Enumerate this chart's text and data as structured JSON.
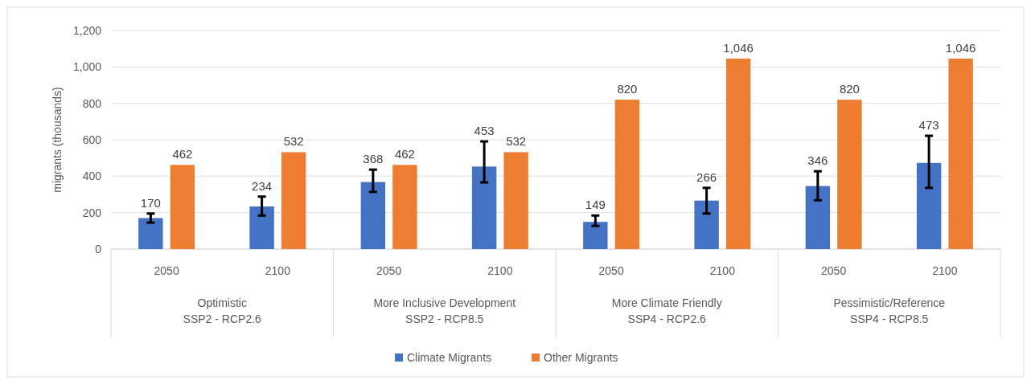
{
  "chart_data": {
    "type": "bar",
    "ylabel": "migrants (thousands)",
    "categories": [
      "2050",
      "2100",
      "2050",
      "2100",
      "2050",
      "2100",
      "2050",
      "2100"
    ],
    "series": [
      {
        "name": "Climate Migrants",
        "color": "#4472c4",
        "values": [
          170,
          234,
          368,
          453,
          149,
          266,
          346,
          473
        ],
        "errors": [
          [
            145,
            195
          ],
          [
            184,
            288
          ],
          [
            314,
            436
          ],
          [
            366,
            591
          ],
          [
            127,
            184
          ],
          [
            195,
            336
          ],
          [
            268,
            427
          ],
          [
            336,
            622
          ]
        ],
        "value_labels": [
          "170",
          "234",
          "368",
          "453",
          "149",
          "266",
          "346",
          "473"
        ]
      },
      {
        "name": "Other Migrants",
        "color": "#ed7d31",
        "values": [
          462,
          532,
          462,
          532,
          820,
          1046,
          820,
          1046
        ],
        "value_labels": [
          "462",
          "532",
          "462",
          "532",
          "820",
          "1,046",
          "820",
          "1,046"
        ]
      }
    ],
    "annotations": [
      "Optimistic\nSSP2 - RCP2.6",
      "More Inclusive Development\nSSP2 - RCP8.5",
      "More Climate Friendly\nSSP4 - RCP2.6",
      "Pessimistic/Reference\nSSP4 - RCP8.5"
    ],
    "ylim": [
      0,
      1200
    ],
    "yticks": [
      0,
      200,
      400,
      600,
      800,
      {
        "value": 1000,
        "label": "1,000"
      },
      {
        "value": 1200,
        "label": "1,200"
      }
    ],
    "grid": "y",
    "legend": "bottom"
  }
}
